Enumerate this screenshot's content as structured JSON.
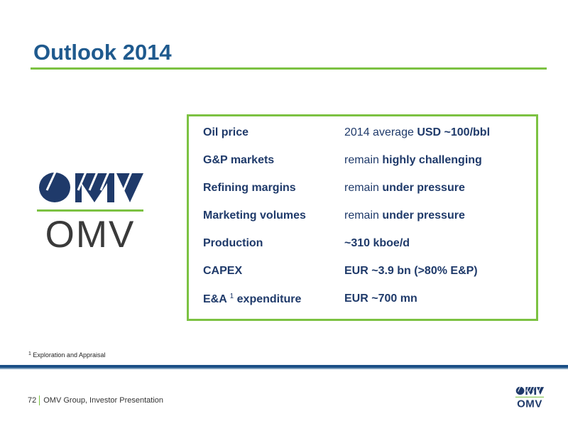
{
  "slide": {
    "title": "Outlook 2014"
  },
  "logo": {
    "wordmark": "OMV"
  },
  "outlook": [
    {
      "label": "Oil price",
      "value_prefix": "2014 average ",
      "value_bold": "USD ~100/bbl"
    },
    {
      "label": "G&P markets",
      "value_prefix": "remain ",
      "value_bold": "highly challenging"
    },
    {
      "label": "Refining margins",
      "value_prefix": "remain ",
      "value_bold": "under pressure"
    },
    {
      "label": "Marketing volumes",
      "value_prefix": "remain ",
      "value_bold": "under pressure"
    },
    {
      "label": "Production",
      "value_prefix": "",
      "value_bold": "~310 kboe/d"
    },
    {
      "label": "CAPEX",
      "value_prefix": "",
      "value_bold": "EUR ~3.9 bn (>80% E&P)"
    },
    {
      "label_pre": "E&A ",
      "label_sup": "1",
      "label_post": " expenditure",
      "value_prefix": "",
      "value_bold": "EUR ~700 mn"
    }
  ],
  "footnote": {
    "marker": "1",
    "text": " Exploration and Appraisal"
  },
  "footer": {
    "page_number": "72",
    "text": "OMV Group, Investor Presentation"
  },
  "colors": {
    "title_blue": "#1f5a8e",
    "accent_green": "#7cc242",
    "text_navy": "#1f3a6a",
    "bar_blue": "#1a4f86"
  }
}
